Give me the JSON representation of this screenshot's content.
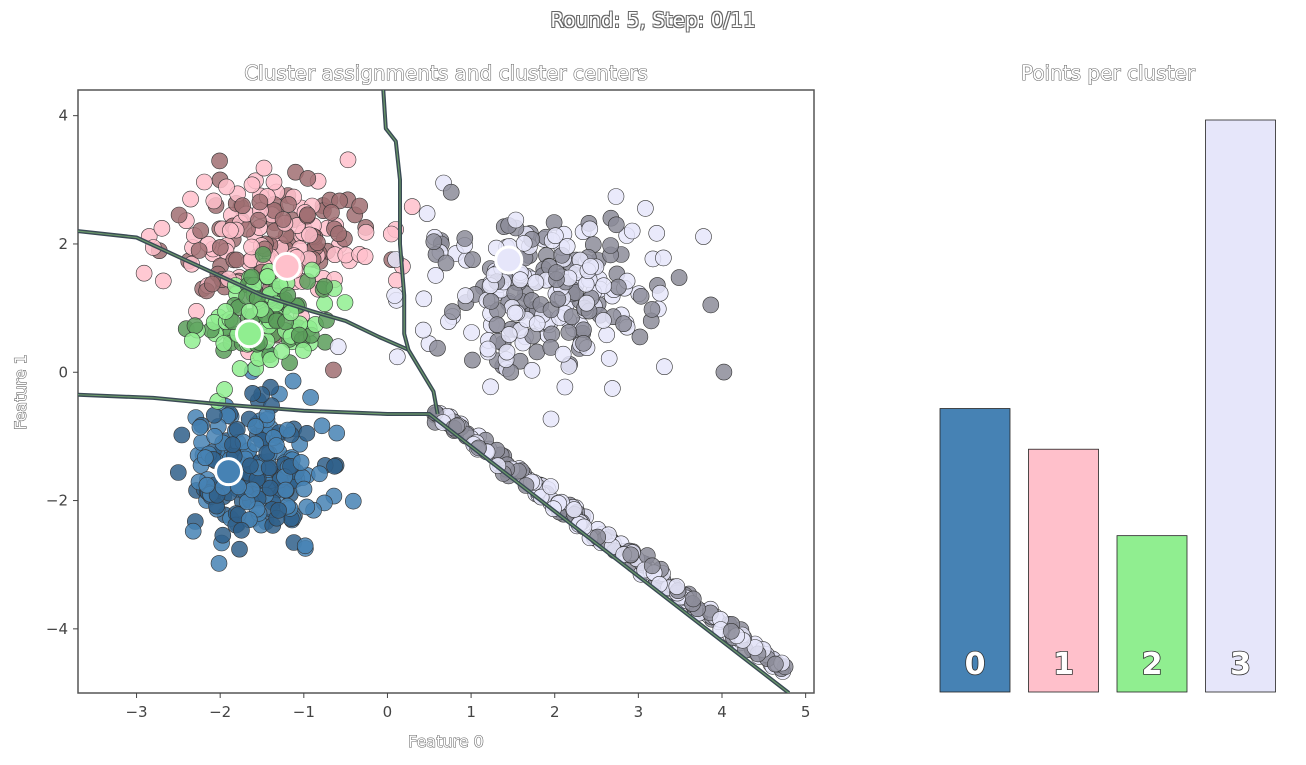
{
  "figure": {
    "suptitle": "Round: 5, Step: 0/11"
  },
  "colors": {
    "cluster_fill": [
      "#4682b4",
      "#ffc0cb",
      "#90ee90",
      "#e6e6fa"
    ],
    "cluster_point_dark": [
      "#2f5f8a",
      "#a06e72",
      "#5a9e5a",
      "#8c8c99"
    ],
    "boundary": "#3a4a55"
  },
  "chart_data": [
    {
      "type": "scatter",
      "title": "Cluster assignments and cluster centers",
      "xlabel": "Feature 0",
      "ylabel": "Feature 1",
      "xlim": [
        -3.7,
        5.1
      ],
      "ylim": [
        -5.0,
        4.4
      ],
      "xticks": [
        -3,
        -2,
        -1,
        0,
        1,
        2,
        3,
        4,
        5
      ],
      "yticks": [
        -4,
        -2,
        0,
        2,
        4
      ],
      "grid": false,
      "centers": [
        {
          "cluster": 0,
          "x": -1.9,
          "y": -1.55
        },
        {
          "cluster": 1,
          "x": -1.2,
          "y": 1.65
        },
        {
          "cluster": 2,
          "x": -1.65,
          "y": 0.6
        },
        {
          "cluster": 3,
          "x": 1.45,
          "y": 1.75
        }
      ],
      "clusters": [
        {
          "cluster": 0,
          "distribution": "gaussian",
          "center": [
            -1.6,
            -1.55
          ],
          "spread": [
            0.4,
            0.6
          ],
          "count": 220
        },
        {
          "cluster": 1,
          "distribution": "gaussian",
          "center": [
            -1.45,
            2.05
          ],
          "spread": [
            0.6,
            0.55
          ],
          "count": 190
        },
        {
          "cluster": 2,
          "distribution": "gaussian",
          "center": [
            -1.5,
            0.75
          ],
          "spread": [
            0.45,
            0.4
          ],
          "count": 110
        },
        {
          "cluster": 3,
          "distribution": "gaussian",
          "center": [
            1.9,
            1.3
          ],
          "spread": [
            0.75,
            0.6
          ],
          "count": 260
        },
        {
          "cluster": 3,
          "distribution": "line",
          "from": [
            0.6,
            -0.65
          ],
          "to": [
            4.7,
            -4.6
          ],
          "count": 230
        }
      ],
      "boundaries": [
        [
          [
            -3.7,
            -0.35
          ],
          [
            -2.8,
            -0.4
          ],
          [
            -2.0,
            -0.5
          ],
          [
            -1.0,
            -0.6
          ],
          [
            0.0,
            -0.65
          ],
          [
            0.5,
            -0.65
          ],
          [
            4.8,
            -5.0
          ]
        ],
        [
          [
            -3.7,
            2.2
          ],
          [
            -3.0,
            2.1
          ],
          [
            -2.5,
            1.8
          ],
          [
            -2.0,
            1.5
          ],
          [
            -1.5,
            1.2
          ],
          [
            -0.9,
            0.95
          ],
          [
            -0.5,
            0.8
          ],
          [
            -0.1,
            0.55
          ],
          [
            0.25,
            0.35
          ],
          [
            0.55,
            -0.3
          ],
          [
            0.6,
            -0.65
          ]
        ],
        [
          [
            -0.05,
            4.4
          ],
          [
            -0.02,
            3.8
          ],
          [
            0.1,
            3.6
          ],
          [
            0.15,
            3.0
          ],
          [
            0.15,
            2.0
          ],
          [
            0.2,
            1.2
          ],
          [
            0.2,
            0.6
          ],
          [
            0.25,
            0.35
          ]
        ]
      ]
    },
    {
      "type": "bar",
      "title": "Points per cluster",
      "categories": [
        "0",
        "1",
        "2",
        "3"
      ],
      "values": [
        223,
        191,
        123,
        450
      ],
      "ylim": [
        0,
        450
      ],
      "xlabel": "",
      "ylabel": ""
    }
  ]
}
